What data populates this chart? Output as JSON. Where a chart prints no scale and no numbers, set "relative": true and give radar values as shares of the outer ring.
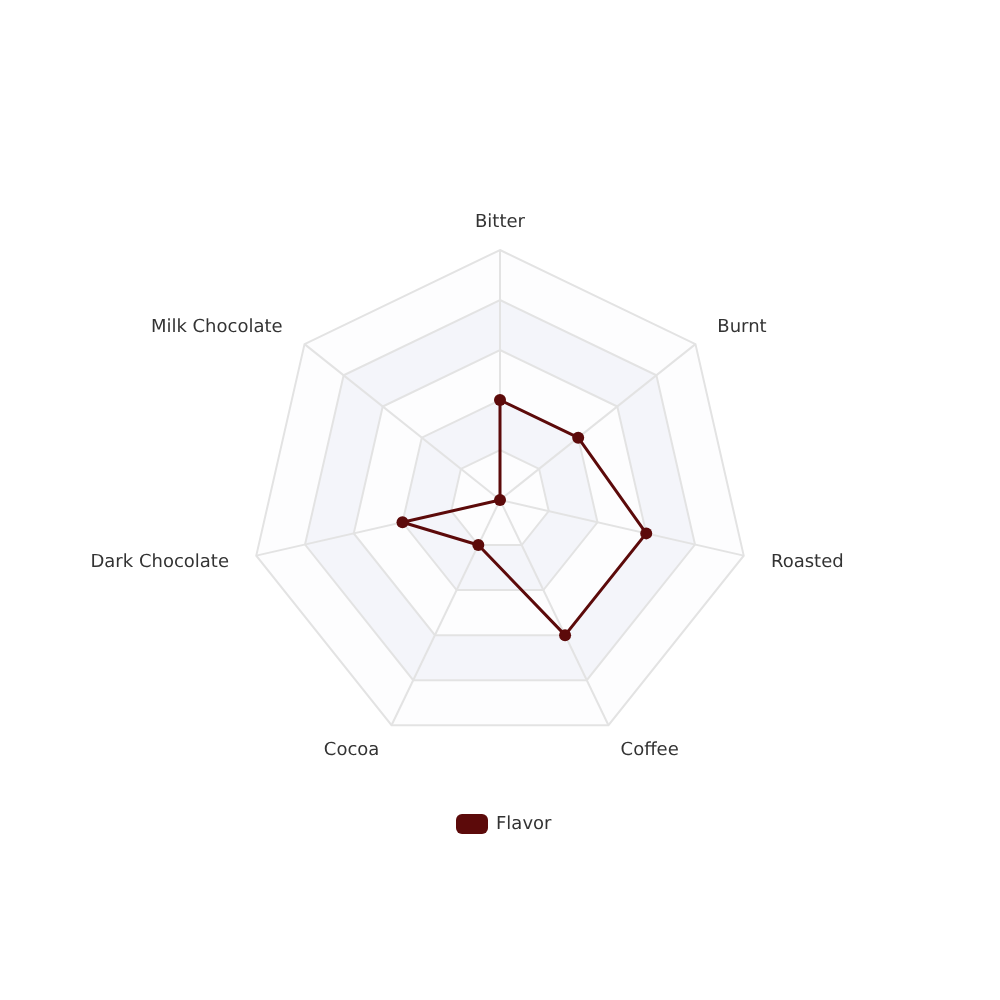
{
  "chart_data": {
    "type": "radar",
    "relative": true,
    "categories": [
      "Bitter",
      "Burnt",
      "Roasted",
      "Coffee",
      "Cocoa",
      "Dark Chocolate",
      "Milk Chocolate"
    ],
    "series": [
      {
        "name": "Flavor",
        "color": "#5c0a0a",
        "values": [
          0.4,
          0.4,
          0.6,
          0.6,
          0.2,
          0.4,
          0
        ]
      }
    ],
    "legend": "bottom",
    "marker": "circle",
    "line_style": "solid"
  }
}
